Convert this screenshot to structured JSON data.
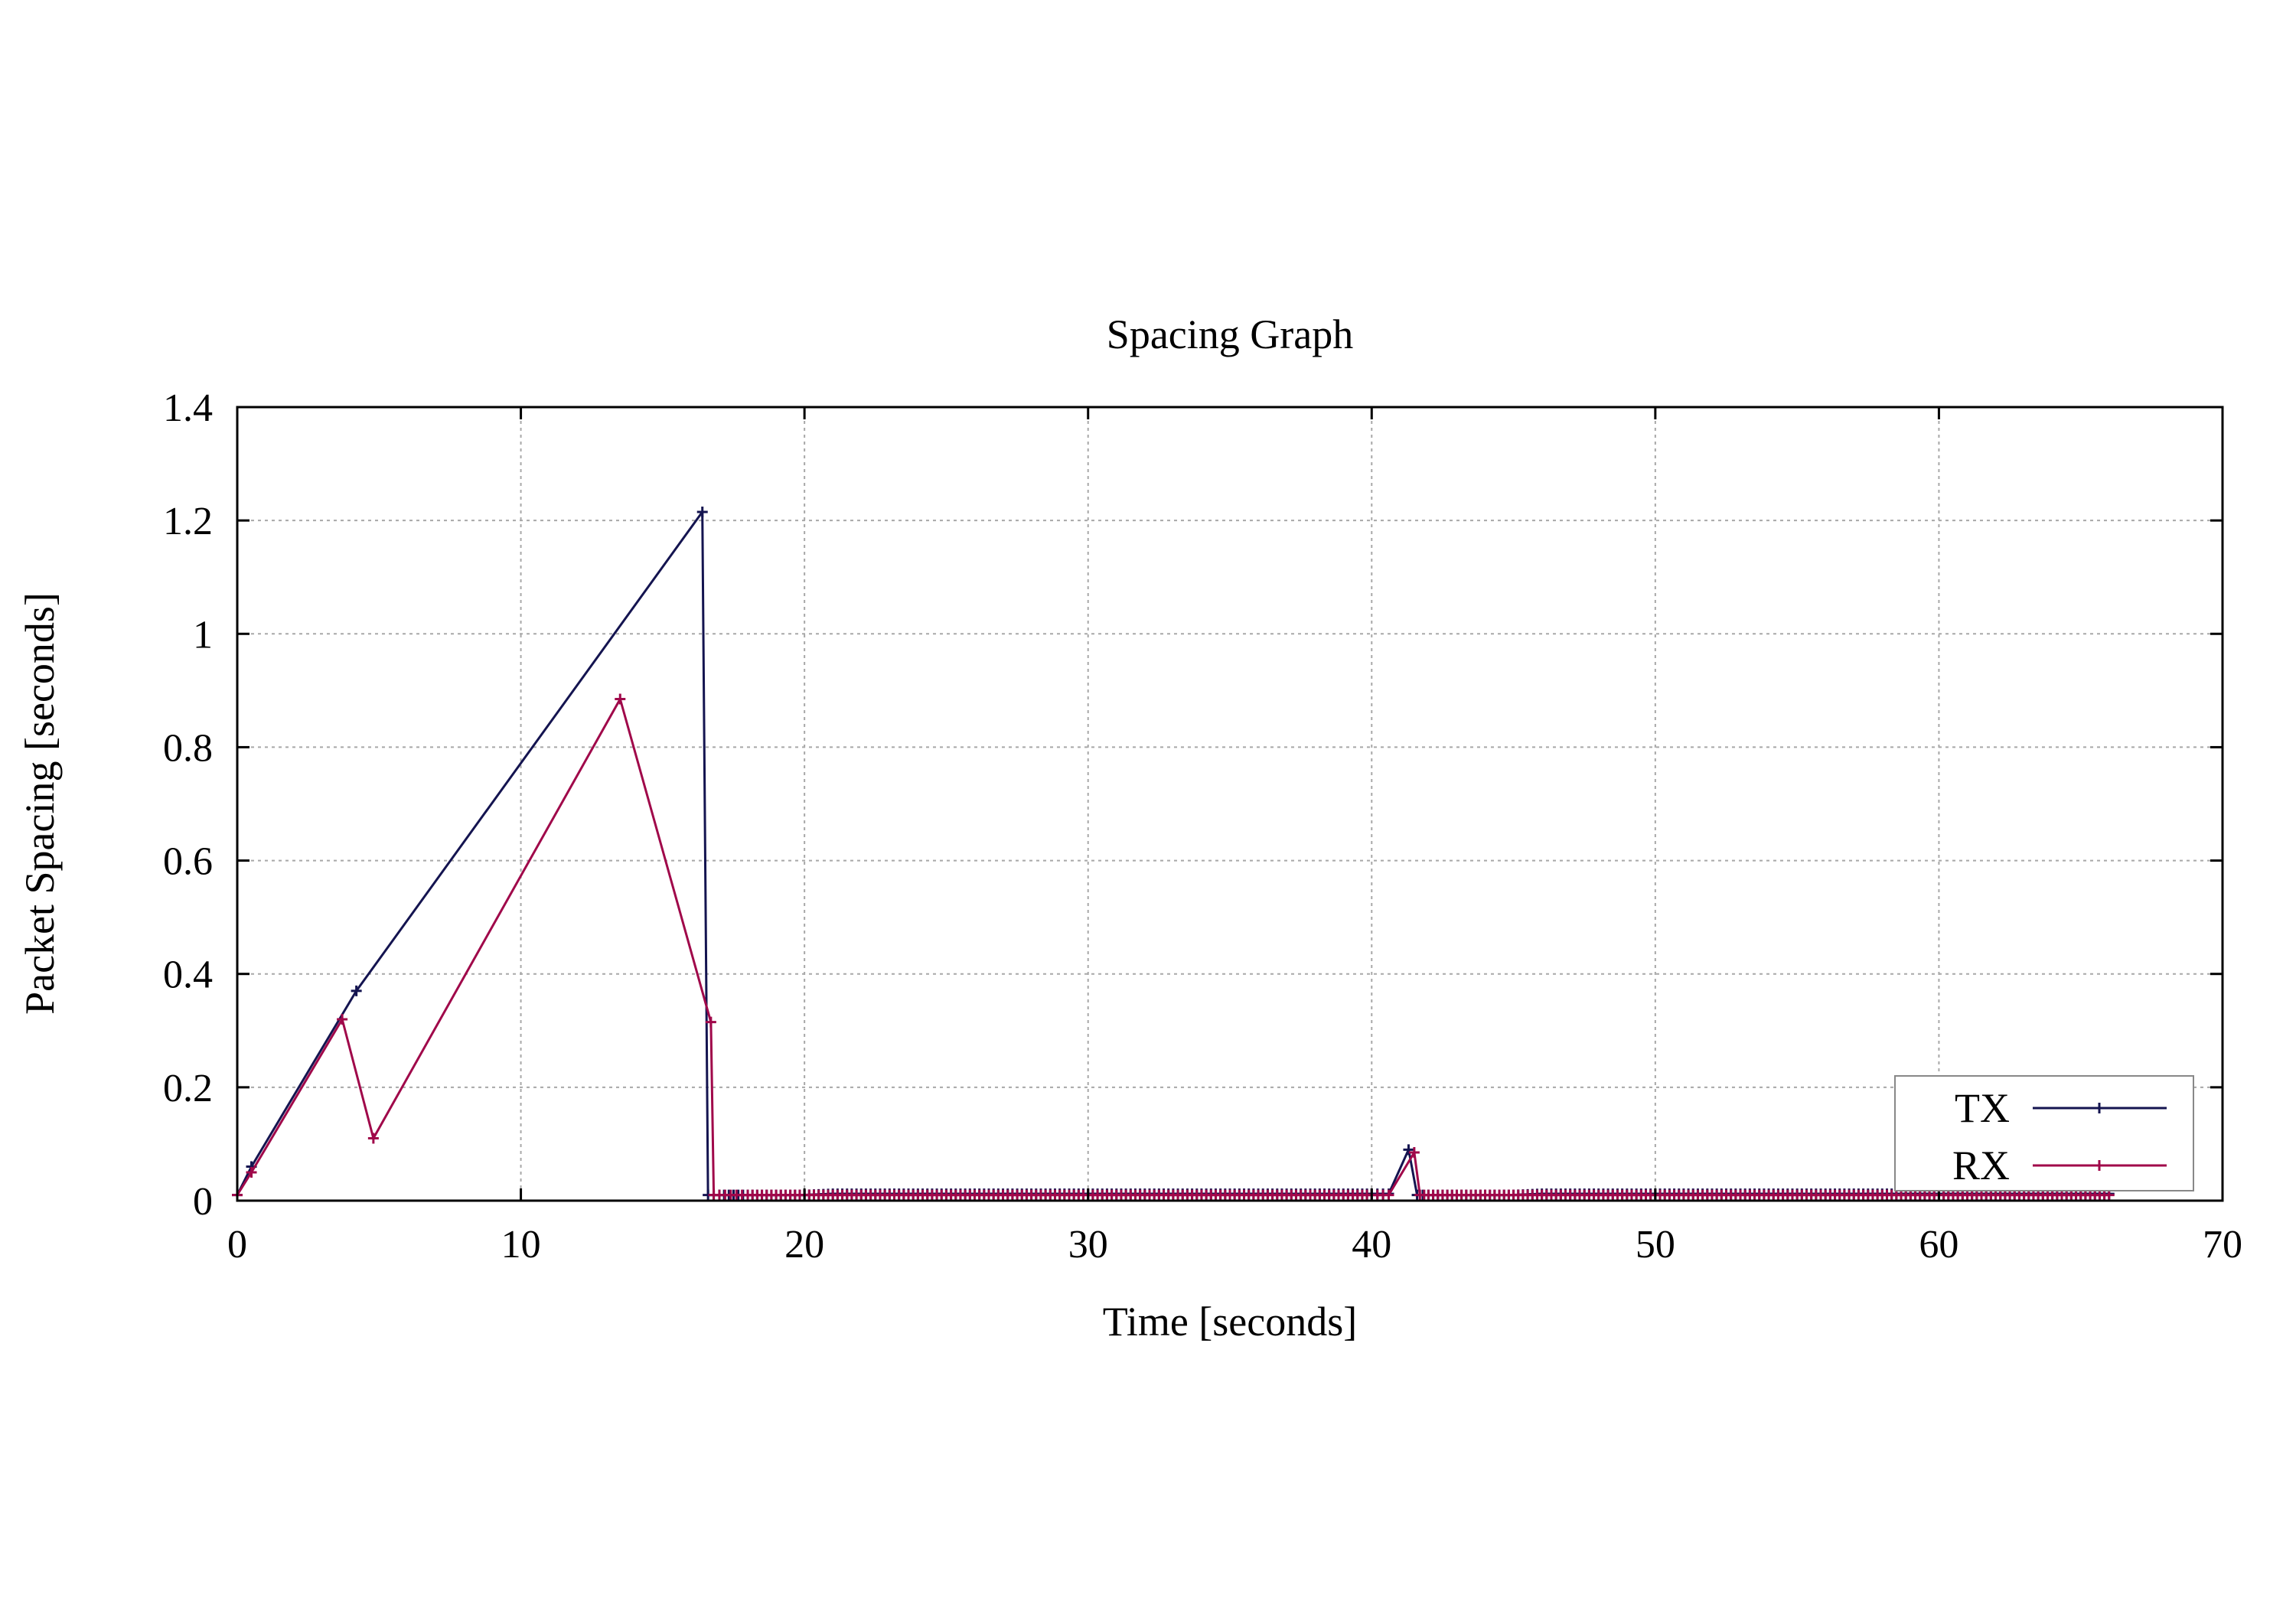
{
  "chart_data": {
    "type": "line",
    "title": "Spacing Graph",
    "xlabel": "Time [seconds]",
    "ylabel": "Packet Spacing [seconds]",
    "xlim": [
      0,
      70
    ],
    "ylim": [
      0,
      1.4
    ],
    "xticks": [
      0,
      10,
      20,
      30,
      40,
      50,
      60,
      70
    ],
    "xtick_labels": [
      "0",
      "10",
      "20",
      "30",
      "40",
      "50",
      "60",
      "70"
    ],
    "yticks": [
      0,
      0.2,
      0.4,
      0.6,
      0.8,
      1.0,
      1.2,
      1.4
    ],
    "ytick_labels": [
      "0",
      "0.2",
      "0.4",
      "0.6",
      "0.8",
      "1",
      "1.2",
      "1.4"
    ],
    "grid": true,
    "legend_position": "bottom-right",
    "series": [
      {
        "name": "TX",
        "color": "#141450",
        "points": [
          [
            0.0,
            0.01
          ],
          [
            0.5,
            0.06
          ],
          [
            4.2,
            0.37
          ],
          [
            16.4,
            1.215
          ],
          [
            16.6,
            0.01
          ],
          [
            17.0,
            0.01
          ],
          [
            17.5,
            0.01
          ],
          [
            18.0,
            0.01
          ],
          [
            18.5,
            0.01
          ],
          [
            19.0,
            0.01
          ],
          [
            20.0,
            0.01
          ],
          [
            21.0,
            0.012
          ],
          [
            22.0,
            0.012
          ],
          [
            23.0,
            0.012
          ],
          [
            24.0,
            0.012
          ],
          [
            25.0,
            0.012
          ],
          [
            26.0,
            0.012
          ],
          [
            27.0,
            0.012
          ],
          [
            28.0,
            0.012
          ],
          [
            29.0,
            0.012
          ],
          [
            30.0,
            0.012
          ],
          [
            31.0,
            0.012
          ],
          [
            32.0,
            0.012
          ],
          [
            33.0,
            0.012
          ],
          [
            34.0,
            0.012
          ],
          [
            35.0,
            0.012
          ],
          [
            36.0,
            0.012
          ],
          [
            37.0,
            0.012
          ],
          [
            38.0,
            0.012
          ],
          [
            39.0,
            0.012
          ],
          [
            40.0,
            0.012
          ],
          [
            40.6,
            0.012
          ],
          [
            41.3,
            0.09
          ],
          [
            41.6,
            0.01
          ],
          [
            42.0,
            0.01
          ],
          [
            43.0,
            0.01
          ],
          [
            44.0,
            0.01
          ],
          [
            45.0,
            0.01
          ],
          [
            46.0,
            0.012
          ],
          [
            47.0,
            0.012
          ],
          [
            48.0,
            0.012
          ],
          [
            49.0,
            0.012
          ],
          [
            50.0,
            0.012
          ],
          [
            51.0,
            0.012
          ],
          [
            52.0,
            0.012
          ],
          [
            53.0,
            0.012
          ],
          [
            54.0,
            0.012
          ],
          [
            55.0,
            0.012
          ],
          [
            56.0,
            0.012
          ],
          [
            57.0,
            0.012
          ],
          [
            58.0,
            0.012
          ],
          [
            59.0,
            0.012
          ],
          [
            60.0,
            0.012
          ],
          [
            61.0,
            0.012
          ],
          [
            62.0,
            0.012
          ],
          [
            63.0,
            0.012
          ],
          [
            64.0,
            0.012
          ],
          [
            65.0,
            0.012
          ],
          [
            66.0,
            0.012
          ]
        ]
      },
      {
        "name": "RX",
        "color": "#a0084a",
        "points": [
          [
            0.0,
            0.01
          ],
          [
            0.5,
            0.05
          ],
          [
            3.7,
            0.32
          ],
          [
            4.8,
            0.11
          ],
          [
            13.5,
            0.885
          ],
          [
            16.7,
            0.315
          ],
          [
            16.8,
            0.01
          ],
          [
            17.2,
            0.01
          ],
          [
            17.6,
            0.01
          ],
          [
            18.0,
            0.01
          ],
          [
            18.5,
            0.01
          ],
          [
            19.0,
            0.01
          ],
          [
            20.0,
            0.01
          ],
          [
            21.0,
            0.01
          ],
          [
            22.0,
            0.01
          ],
          [
            23.0,
            0.01
          ],
          [
            24.0,
            0.01
          ],
          [
            25.0,
            0.01
          ],
          [
            26.0,
            0.01
          ],
          [
            27.0,
            0.01
          ],
          [
            28.0,
            0.01
          ],
          [
            29.0,
            0.01
          ],
          [
            30.0,
            0.01
          ],
          [
            31.0,
            0.01
          ],
          [
            32.0,
            0.01
          ],
          [
            33.0,
            0.01
          ],
          [
            34.0,
            0.01
          ],
          [
            35.0,
            0.01
          ],
          [
            36.0,
            0.01
          ],
          [
            37.0,
            0.01
          ],
          [
            38.0,
            0.01
          ],
          [
            39.0,
            0.01
          ],
          [
            40.0,
            0.01
          ],
          [
            40.6,
            0.01
          ],
          [
            41.5,
            0.085
          ],
          [
            41.7,
            0.01
          ],
          [
            42.0,
            0.01
          ],
          [
            43.0,
            0.01
          ],
          [
            44.0,
            0.01
          ],
          [
            45.0,
            0.01
          ],
          [
            46.0,
            0.01
          ],
          [
            47.0,
            0.01
          ],
          [
            48.0,
            0.01
          ],
          [
            49.0,
            0.01
          ],
          [
            50.0,
            0.01
          ],
          [
            51.0,
            0.01
          ],
          [
            52.0,
            0.01
          ],
          [
            53.0,
            0.01
          ],
          [
            54.0,
            0.01
          ],
          [
            55.0,
            0.01
          ],
          [
            56.0,
            0.01
          ],
          [
            57.0,
            0.01
          ],
          [
            58.0,
            0.01
          ],
          [
            59.0,
            0.01
          ],
          [
            60.0,
            0.01
          ],
          [
            61.0,
            0.01
          ],
          [
            62.0,
            0.01
          ],
          [
            63.0,
            0.01
          ],
          [
            64.0,
            0.01
          ],
          [
            65.0,
            0.01
          ],
          [
            66.0,
            0.01
          ]
        ]
      }
    ]
  }
}
